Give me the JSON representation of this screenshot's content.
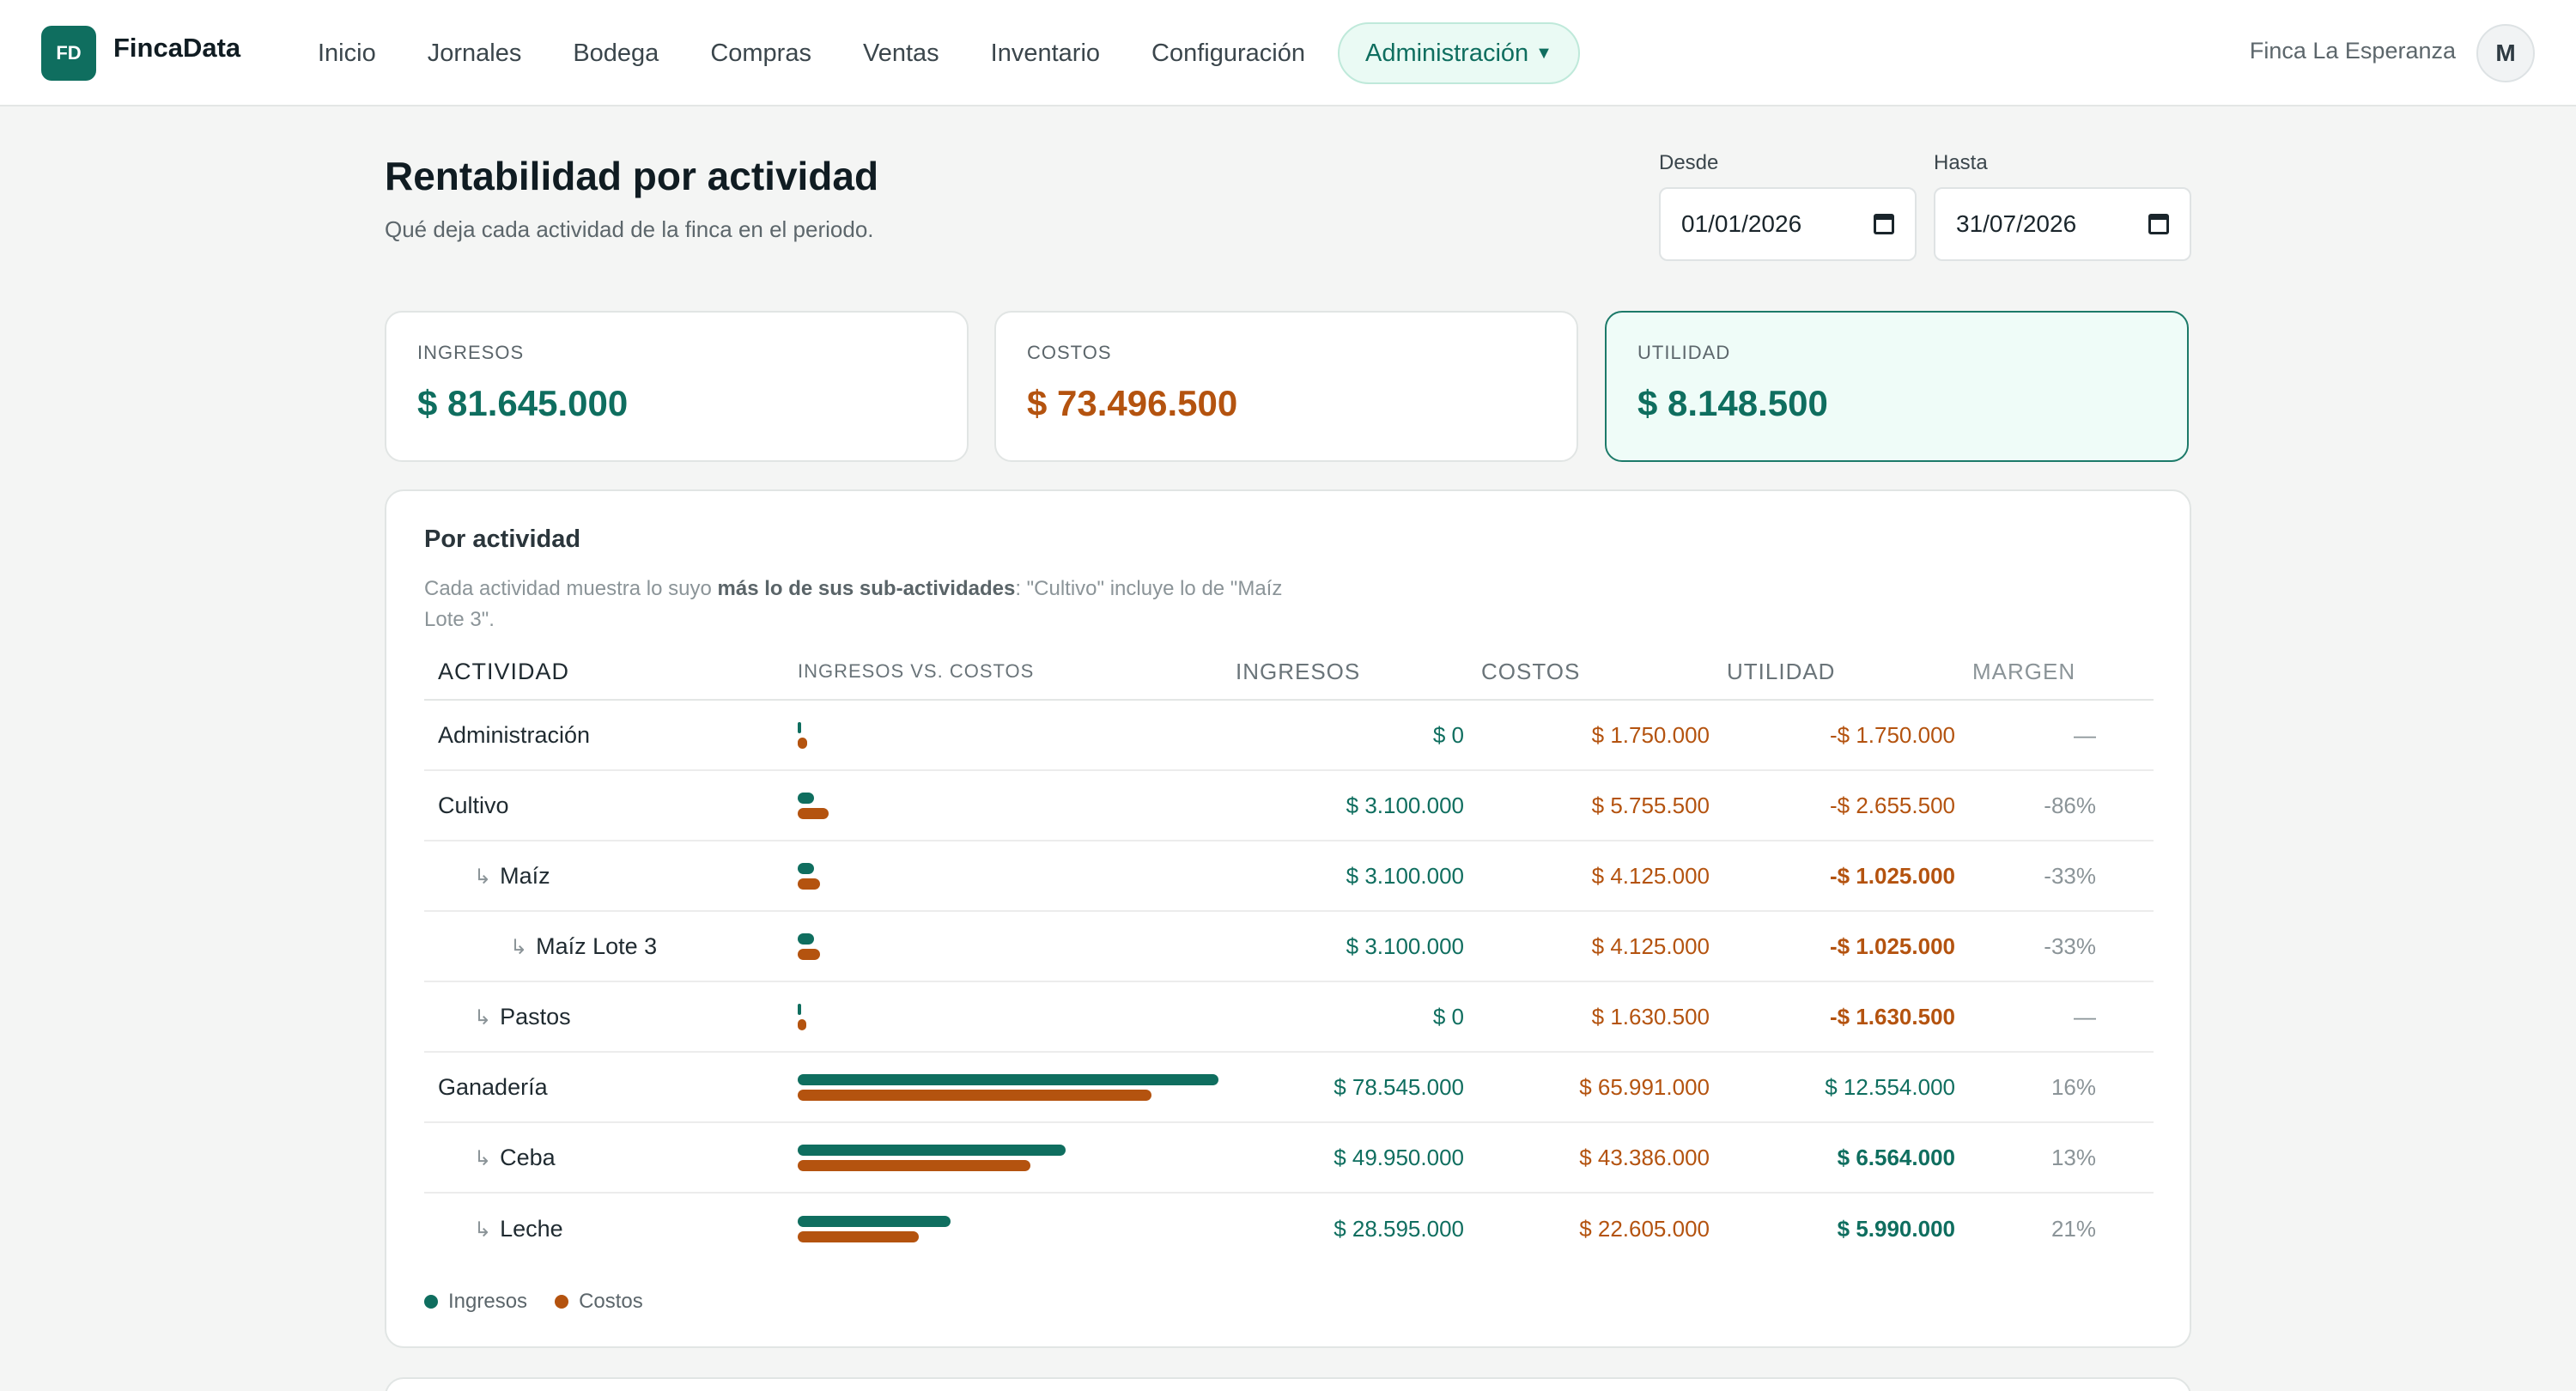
{
  "app": {
    "logo": "FD",
    "brand": "FincaData"
  },
  "nav": {
    "items": [
      "Inicio",
      "Jornales",
      "Bodega",
      "Compras",
      "Ventas",
      "Inventario",
      "Configuración"
    ],
    "active": "Administración",
    "farm": "Finca La Esperanza",
    "avatar": "M"
  },
  "header": {
    "title": "Rentabilidad por actividad",
    "subtitle": "Qué deja cada actividad de la finca en el periodo.",
    "from_label": "Desde",
    "from_value": "01/01/2026",
    "to_label": "Hasta",
    "to_value": "31/07/2026"
  },
  "kpis": {
    "income_label": "INGRESOS",
    "income_value": "$ 81.645.000",
    "cost_label": "COSTOS",
    "cost_value": "$ 73.496.500",
    "profit_label": "UTILIDAD",
    "profit_value": "$ 8.148.500"
  },
  "panel": {
    "title": "Por actividad",
    "note_pre": "Cada actividad muestra lo suyo ",
    "note_bold": "más lo de sus sub-actividades",
    "note_post": ": \"Cultivo\" incluye lo de \"Maíz Lote 3\".",
    "columns": [
      "ACTIVIDAD",
      "INGRESOS VS. COSTOS",
      "INGRESOS",
      "COSTOS",
      "UTILIDAD",
      "MARGEN"
    ],
    "rows": [
      {
        "name": "Administración",
        "level": 0,
        "income": "$ 0",
        "cost": "$ 1.750.000",
        "profit": "-$ 1.750.000",
        "margin": "—",
        "income_num": 0,
        "cost_num": 1750000,
        "profit_color": "orange",
        "profit_bold": false
      },
      {
        "name": "Cultivo",
        "level": 0,
        "income": "$ 3.100.000",
        "cost": "$ 5.755.500",
        "profit": "-$ 2.655.500",
        "margin": "-86%",
        "income_num": 3100000,
        "cost_num": 5755500,
        "profit_color": "orange",
        "profit_bold": false
      },
      {
        "name": "Maíz",
        "level": 1,
        "income": "$ 3.100.000",
        "cost": "$ 4.125.000",
        "profit": "-$ 1.025.000",
        "margin": "-33%",
        "income_num": 3100000,
        "cost_num": 4125000,
        "profit_color": "orange",
        "profit_bold": true
      },
      {
        "name": "Maíz Lote 3",
        "level": 2,
        "income": "$ 3.100.000",
        "cost": "$ 4.125.000",
        "profit": "-$ 1.025.000",
        "margin": "-33%",
        "income_num": 3100000,
        "cost_num": 4125000,
        "profit_color": "orange",
        "profit_bold": true
      },
      {
        "name": "Pastos",
        "level": 1,
        "income": "$ 0",
        "cost": "$ 1.630.500",
        "profit": "-$ 1.630.500",
        "margin": "—",
        "income_num": 0,
        "cost_num": 1630500,
        "profit_color": "orange",
        "profit_bold": true
      },
      {
        "name": "Ganadería",
        "level": 0,
        "income": "$ 78.545.000",
        "cost": "$ 65.991.000",
        "profit": "$ 12.554.000",
        "margin": "16%",
        "income_num": 78545000,
        "cost_num": 65991000,
        "profit_color": "teal",
        "profit_bold": false
      },
      {
        "name": "Ceba",
        "level": 1,
        "income": "$ 49.950.000",
        "cost": "$ 43.386.000",
        "profit": "$ 6.564.000",
        "margin": "13%",
        "income_num": 49950000,
        "cost_num": 43386000,
        "profit_color": "teal",
        "profit_bold": true
      },
      {
        "name": "Leche",
        "level": 1,
        "income": "$ 28.595.000",
        "cost": "$ 22.605.000",
        "profit": "$ 5.990.000",
        "margin": "21%",
        "income_num": 28595000,
        "cost_num": 22605000,
        "profit_color": "teal",
        "profit_bold": true
      }
    ],
    "legend_income": "Ingresos",
    "legend_cost": "Costos",
    "colors": {
      "income": "#0f6e5f",
      "cost": "#b4530f"
    }
  }
}
